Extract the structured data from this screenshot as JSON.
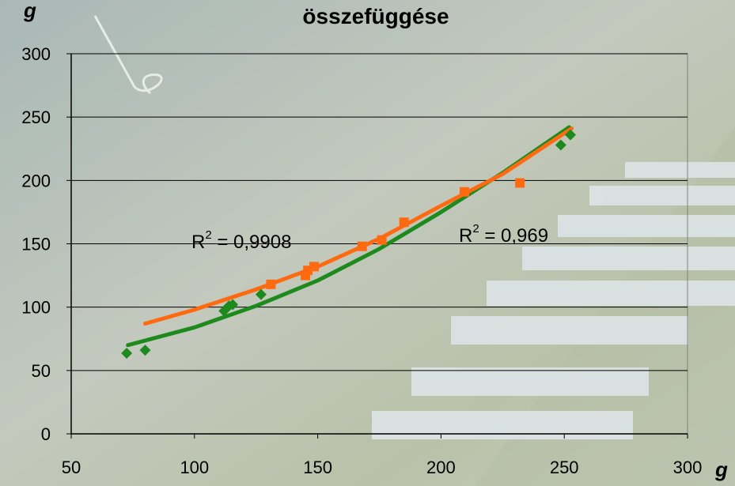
{
  "chart_data": {
    "type": "scatter",
    "title": "összefüggése",
    "y_label": "g",
    "x_label": "g",
    "xlim": [
      50,
      300
    ],
    "ylim": [
      0,
      300
    ],
    "xticks": [
      50,
      100,
      150,
      200,
      250,
      300
    ],
    "yticks": [
      0,
      50,
      100,
      150,
      200,
      250,
      300
    ],
    "grid": true,
    "series": [
      {
        "color": "#1e8a1e",
        "marker": "diamond",
        "x": [
          72.5,
          80,
          112,
          114,
          115.5,
          127,
          248.6,
          252.5
        ],
        "values": [
          63.6,
          66,
          97,
          101,
          102,
          110,
          228,
          236
        ]
      },
      {
        "color": "#ff6a10",
        "marker": "square",
        "x": [
          131,
          145,
          146,
          148.5,
          168,
          176,
          185,
          209.5,
          232
        ],
        "values": [
          118,
          125,
          129,
          132,
          148,
          153,
          167,
          191,
          198
        ]
      }
    ],
    "trendlines": [
      {
        "color": "#1e8a1e",
        "x": [
          73,
          100,
          125,
          150,
          175,
          200,
          225,
          252
        ],
        "values": [
          70,
          84,
          101,
          121,
          146,
          175,
          206,
          242
        ]
      },
      {
        "color": "#ff6a10",
        "x": [
          80,
          100,
          125,
          150,
          175,
          200,
          225,
          253
        ],
        "values": [
          87,
          98,
          114,
          132,
          154,
          180,
          205,
          241
        ]
      }
    ],
    "annotations": [
      {
        "base": "R",
        "sup": "2",
        "text": " = 0,9908"
      },
      {
        "base": "R",
        "sup": "2",
        "text": " = 0,969"
      }
    ]
  }
}
